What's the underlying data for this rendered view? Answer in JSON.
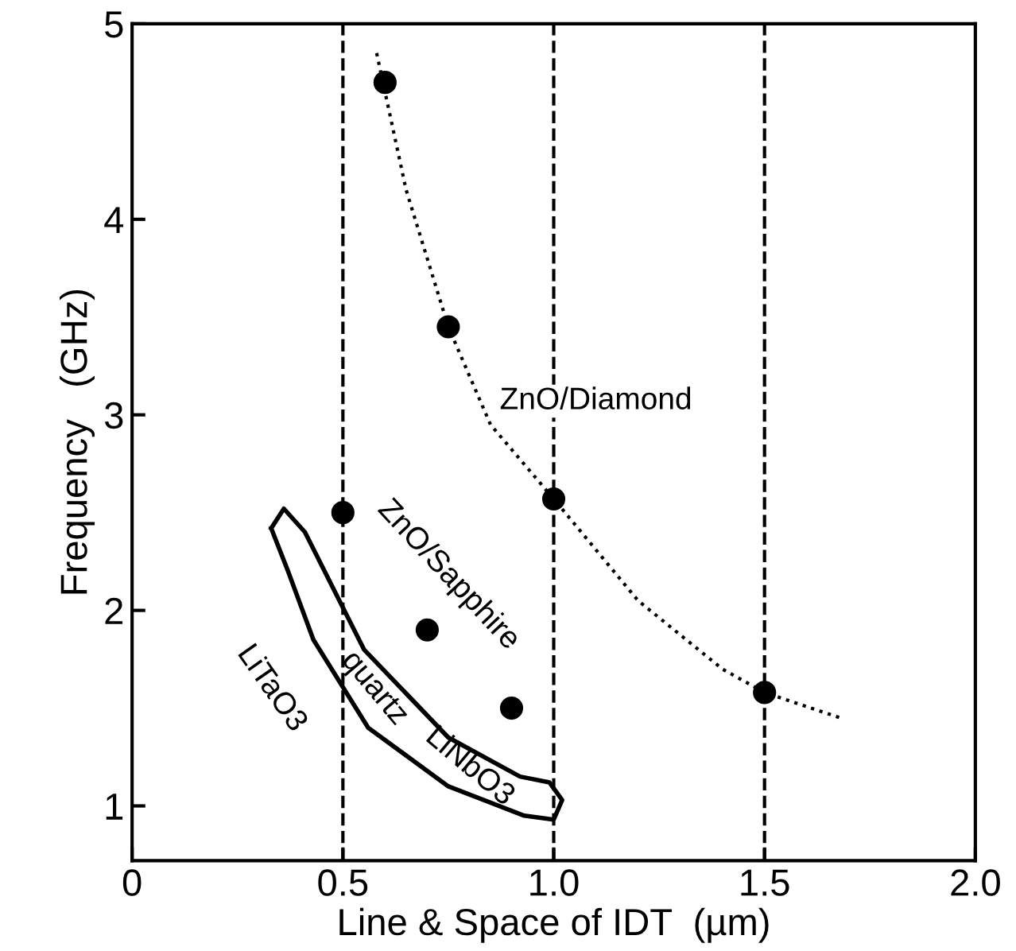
{
  "chart_data": {
    "type": "scatter",
    "xlabel": "Line & Space of IDT  (µm)",
    "ylabel": "Frequency   (GHz)",
    "xlim": [
      0,
      2.0
    ],
    "xticks": [
      0,
      {
        "value": 0.5,
        "label": "0.5"
      },
      {
        "value": 1.0,
        "label": "1.0"
      },
      {
        "value": 1.5,
        "label": "1.5"
      },
      {
        "value": 2.0,
        "label": "2.0"
      }
    ],
    "ylim": [
      0.72,
      5.0
    ],
    "yticks": [
      1,
      2,
      3,
      4,
      5
    ],
    "grid": false,
    "legend": false,
    "marker": "circle",
    "series": [
      {
        "name": "ZnO/Diamond",
        "color": "#000000",
        "x": [
          0.6,
          0.75,
          1.0,
          1.5
        ],
        "values": [
          4.7,
          3.45,
          2.57,
          1.58
        ]
      },
      {
        "type": "line",
        "marker": "none",
        "line_style": "dotted",
        "color": "#000000",
        "x": [
          0.58,
          0.65,
          0.75,
          0.85,
          1.0,
          1.2,
          1.4,
          1.5,
          1.68
        ],
        "values": [
          4.85,
          4.15,
          3.45,
          2.95,
          2.57,
          2.05,
          1.7,
          1.58,
          1.45
        ]
      },
      {
        "name": "ZnO/Sapphire",
        "color": "#000000",
        "x": [
          0.5,
          0.7,
          0.9
        ],
        "values": [
          2.5,
          1.9,
          1.5
        ]
      }
    ],
    "ref_lines": [
      {
        "axis": "x",
        "value": 0.5,
        "color": "#000000",
        "line_style": "dashed"
      },
      {
        "axis": "x",
        "value": 1.0,
        "color": "#000000",
        "line_style": "dashed"
      },
      {
        "axis": "x",
        "value": 1.5,
        "color": "#000000",
        "line_style": "dashed"
      }
    ],
    "annotations": [
      "quartz",
      "LiTaO3",
      "LiNbO3"
    ]
  }
}
